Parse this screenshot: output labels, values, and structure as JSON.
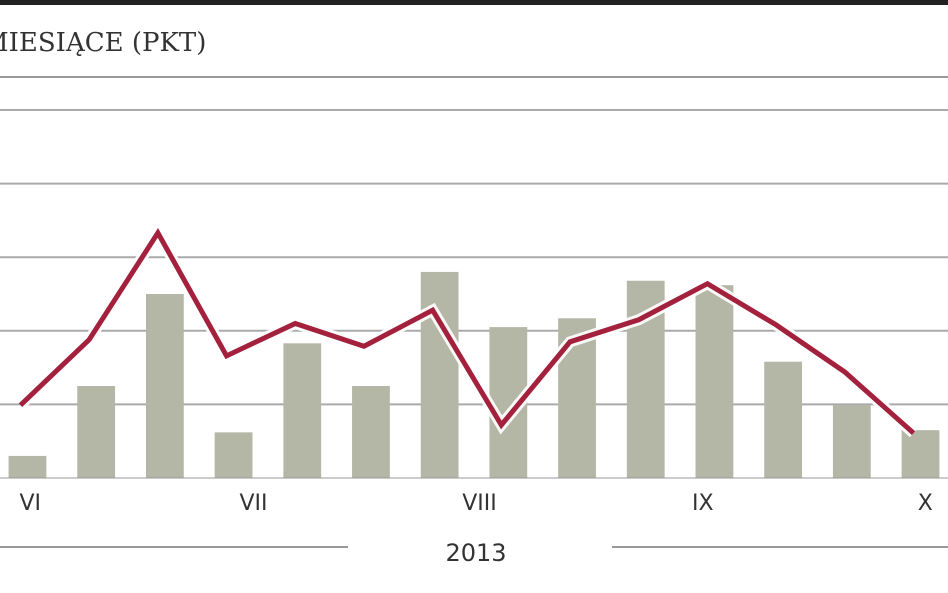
{
  "chart_data": {
    "type": "bar",
    "title": "MIESIĄCE (PKT)",
    "x": [
      0,
      1,
      2,
      3,
      4,
      5,
      6,
      7,
      8,
      9,
      10,
      11,
      12,
      13
    ],
    "series": [
      {
        "type": "bar",
        "color": "#b4b6a6",
        "values": [
          0.3,
          1.25,
          2.5,
          0.62,
          1.83,
          1.25,
          2.8,
          2.05,
          2.17,
          2.68,
          2.62,
          1.58,
          0.99,
          0.65
        ]
      },
      {
        "type": "line",
        "color": "#a3213d",
        "values": [
          0.99,
          1.88,
          3.33,
          1.66,
          2.1,
          1.79,
          2.28,
          0.72,
          1.85,
          2.15,
          2.64,
          2.08,
          1.44,
          0.61
        ]
      }
    ],
    "xlim": [
      -0.4,
      13.4
    ],
    "xticks": [
      {
        "value": 0.04,
        "label": "VI"
      },
      {
        "value": 3.29,
        "label": "VII"
      },
      {
        "value": 6.58,
        "label": "VIII"
      },
      {
        "value": 9.83,
        "label": "IX"
      },
      {
        "value": 13.07,
        "label": "X"
      }
    ],
    "ylim": [
      0,
      5
    ],
    "yticks": [
      1,
      2,
      3,
      4,
      5
    ],
    "year_label": "2013",
    "grid": true
  }
}
